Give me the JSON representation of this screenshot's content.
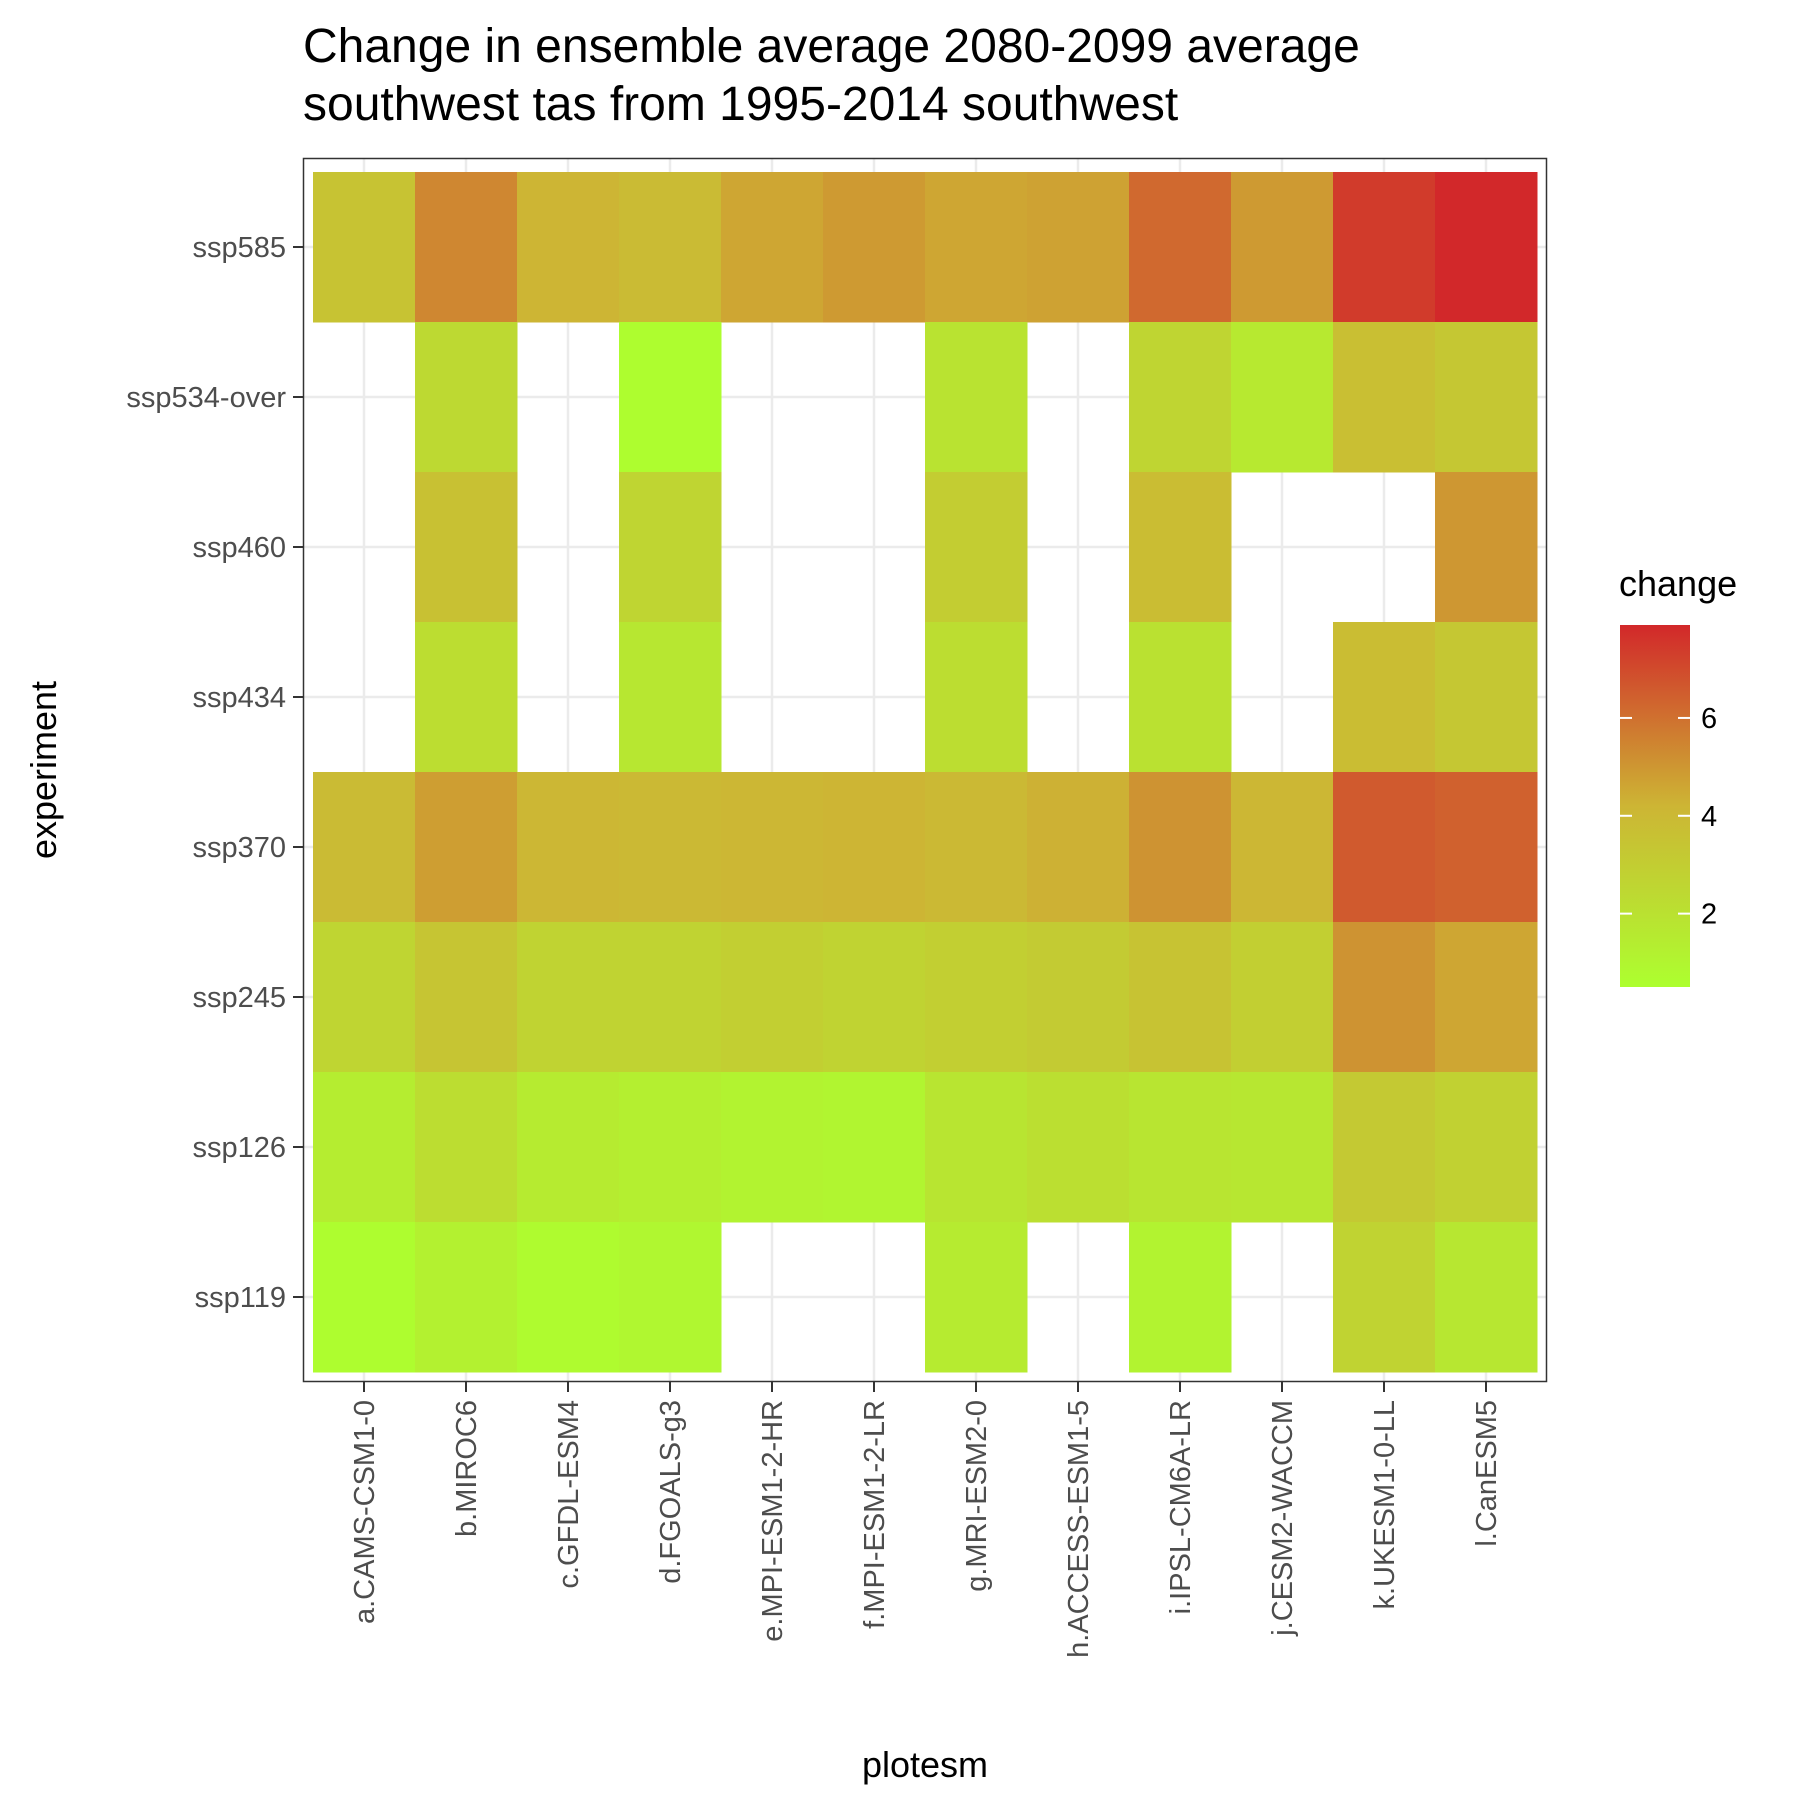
{
  "chart_data": {
    "type": "heatmap",
    "title_lines": [
      "Change in ensemble average 2080-2099 average",
      "southwest tas from 1995-2014 southwest"
    ],
    "xlabel": "plotesm",
    "ylabel": "experiment",
    "x_categories": [
      "a.CAMS-CSM1-0",
      "b.MIROC6",
      "c.GFDL-ESM4",
      "d.FGOALS-g3",
      "e.MPI-ESM1-2-HR",
      "f.MPI-ESM1-2-LR",
      "g.MRI-ESM2-0",
      "h.ACCESS-ESM1-5",
      "i.IPSL-CM6A-LR",
      "j.CESM2-WACCM",
      "k.UKESM1-0-LL",
      "l.CanESM5"
    ],
    "y_categories": [
      "ssp585",
      "ssp534-over",
      "ssp460",
      "ssp434",
      "ssp370",
      "ssp245",
      "ssp126",
      "ssp119"
    ],
    "values": [
      [
        3.5,
        5.4,
        4.2,
        3.9,
        4.6,
        4.9,
        4.6,
        4.7,
        6.2,
        4.9,
        7.4,
        7.9
      ],
      [
        null,
        2.4,
        null,
        0.6,
        null,
        null,
        1.9,
        null,
        2.6,
        1.6,
        3.7,
        3.3
      ],
      [
        null,
        3.6,
        null,
        2.6,
        null,
        null,
        3.0,
        null,
        3.8,
        null,
        null,
        5.0
      ],
      [
        null,
        2.2,
        null,
        1.7,
        null,
        null,
        2.2,
        null,
        2.0,
        null,
        3.8,
        3.3
      ],
      [
        3.9,
        4.8,
        4.1,
        4.0,
        4.1,
        4.2,
        4.0,
        4.3,
        5.1,
        4.1,
        6.6,
        6.4
      ],
      [
        2.6,
        3.4,
        2.7,
        2.7,
        2.9,
        2.7,
        2.9,
        3.1,
        3.5,
        2.9,
        5.1,
        4.6
      ],
      [
        1.4,
        2.2,
        1.5,
        1.3,
        1.1,
        1.0,
        1.8,
        2.1,
        1.8,
        1.7,
        3.2,
        2.8
      ],
      [
        0.6,
        1.2,
        0.7,
        0.9,
        null,
        null,
        1.5,
        null,
        1.1,
        null,
        2.7,
        1.7
      ]
    ],
    "legend": {
      "title": "change",
      "ticks": [
        2,
        4,
        6
      ],
      "range": [
        0.5,
        7.9
      ],
      "colors": [
        "#adff2f",
        "#cdb534",
        "#d2282a"
      ]
    },
    "grid": true,
    "legend_position": "right"
  },
  "colors": {
    "panel_background": "#ffffff",
    "grid_line": "#ebebeb",
    "panel_border": "#333333",
    "tick_mark": "#333333"
  }
}
